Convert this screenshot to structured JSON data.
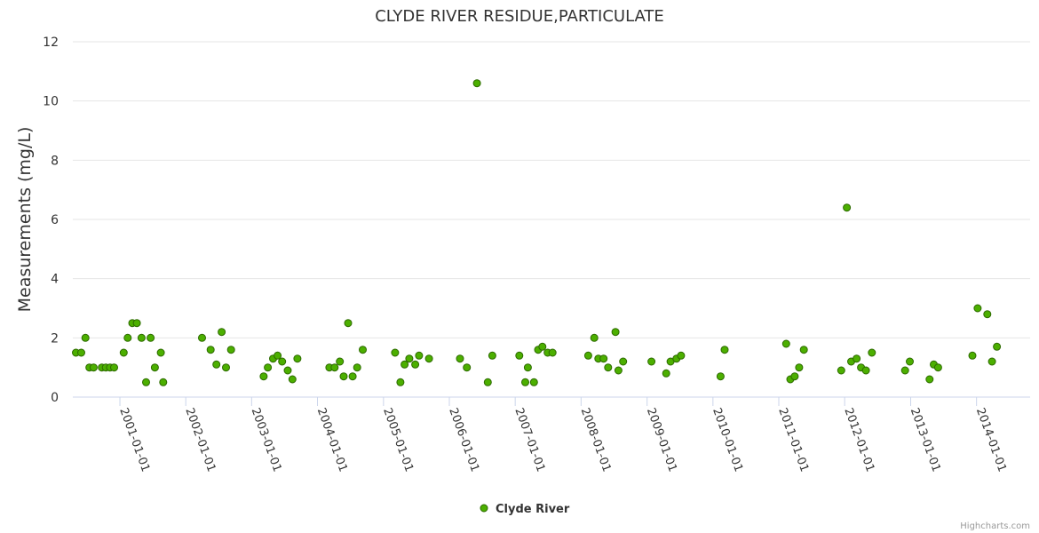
{
  "chart_data": {
    "type": "scatter",
    "title": "CLYDE RIVER RESIDUE,PARTICULATE",
    "ylabel": "Measurements (mg/L)",
    "xlabel": "",
    "ylim": [
      0,
      12
    ],
    "yticks": [
      "0",
      "2",
      "4",
      "6",
      "8",
      "10",
      "12"
    ],
    "xticks": [
      "2001-01-01",
      "2002-01-01",
      "2003-01-01",
      "2004-01-01",
      "2005-01-01",
      "2006-01-01",
      "2007-01-01",
      "2008-01-01",
      "2009-01-01",
      "2010-01-01",
      "2011-01-01",
      "2012-01-01",
      "2013-01-01",
      "2014-01-01"
    ],
    "xlim": [
      "2000-04-15",
      "2014-10-25"
    ],
    "grid": "horizontal",
    "legend_position": "bottom",
    "series": [
      {
        "name": "Clyde River",
        "color": "#4caf00",
        "points": [
          [
            "2000-05-02",
            1.5
          ],
          [
            "2000-06-01",
            1.5
          ],
          [
            "2000-06-24",
            2.0
          ],
          [
            "2000-07-16",
            1.0
          ],
          [
            "2000-08-08",
            1.0
          ],
          [
            "2000-09-23",
            1.0
          ],
          [
            "2000-10-15",
            1.0
          ],
          [
            "2000-11-07",
            1.0
          ],
          [
            "2000-11-30",
            1.0
          ],
          [
            "2001-01-22",
            1.5
          ],
          [
            "2001-02-13",
            2.0
          ],
          [
            "2001-03-11",
            2.5
          ],
          [
            "2001-04-05",
            2.5
          ],
          [
            "2001-05-01",
            2.0
          ],
          [
            "2001-05-26",
            0.5
          ],
          [
            "2001-06-20",
            2.0
          ],
          [
            "2001-07-14",
            1.0
          ],
          [
            "2001-08-16",
            1.5
          ],
          [
            "2001-08-29",
            0.5
          ],
          [
            "2002-04-01",
            2.0
          ],
          [
            "2002-05-19",
            1.6
          ],
          [
            "2002-06-20",
            1.1
          ],
          [
            "2002-07-19",
            2.2
          ],
          [
            "2002-08-12",
            1.0
          ],
          [
            "2002-09-09",
            1.6
          ],
          [
            "2003-03-09",
            0.7
          ],
          [
            "2003-04-01",
            1.0
          ],
          [
            "2003-04-30",
            1.3
          ],
          [
            "2003-05-25",
            1.4
          ],
          [
            "2003-06-19",
            1.2
          ],
          [
            "2003-07-20",
            0.9
          ],
          [
            "2003-08-15",
            0.6
          ],
          [
            "2003-09-12",
            1.3
          ],
          [
            "2004-03-07",
            1.0
          ],
          [
            "2004-04-05",
            1.0
          ],
          [
            "2004-05-04",
            1.2
          ],
          [
            "2004-05-25",
            0.7
          ],
          [
            "2004-06-19",
            2.5
          ],
          [
            "2004-07-14",
            0.7
          ],
          [
            "2004-08-08",
            1.0
          ],
          [
            "2004-09-08",
            1.6
          ],
          [
            "2005-03-06",
            1.5
          ],
          [
            "2005-04-05",
            0.5
          ],
          [
            "2005-04-28",
            1.1
          ],
          [
            "2005-05-24",
            1.3
          ],
          [
            "2005-06-26",
            1.1
          ],
          [
            "2005-07-17",
            1.4
          ],
          [
            "2005-09-10",
            1.3
          ],
          [
            "2006-03-01",
            1.3
          ],
          [
            "2006-04-08",
            1.0
          ],
          [
            "2006-06-03",
            10.6
          ],
          [
            "2006-08-02",
            0.5
          ],
          [
            "2006-08-27",
            1.4
          ],
          [
            "2007-01-24",
            1.4
          ],
          [
            "2007-02-26",
            0.5
          ],
          [
            "2007-03-12",
            1.0
          ],
          [
            "2007-04-15",
            0.5
          ],
          [
            "2007-05-08",
            1.6
          ],
          [
            "2007-06-01",
            1.7
          ],
          [
            "2007-06-30",
            1.5
          ],
          [
            "2007-07-27",
            1.5
          ],
          [
            "2008-02-10",
            1.4
          ],
          [
            "2008-03-14",
            2.0
          ],
          [
            "2008-04-06",
            1.3
          ],
          [
            "2008-05-05",
            1.3
          ],
          [
            "2008-05-30",
            1.0
          ],
          [
            "2008-07-10",
            2.2
          ],
          [
            "2008-07-26",
            0.9
          ],
          [
            "2008-08-21",
            1.2
          ],
          [
            "2009-01-25",
            1.2
          ],
          [
            "2009-04-17",
            0.8
          ],
          [
            "2009-05-11",
            1.2
          ],
          [
            "2009-06-13",
            1.3
          ],
          [
            "2009-07-08",
            1.4
          ],
          [
            "2010-02-12",
            0.7
          ],
          [
            "2010-03-07",
            1.6
          ],
          [
            "2011-02-11",
            1.8
          ],
          [
            "2011-03-06",
            0.6
          ],
          [
            "2011-03-30",
            0.7
          ],
          [
            "2011-04-24",
            1.0
          ],
          [
            "2011-05-20",
            1.6
          ],
          [
            "2011-12-13",
            0.9
          ],
          [
            "2012-01-13",
            6.4
          ],
          [
            "2012-02-06",
            1.2
          ],
          [
            "2012-03-07",
            1.3
          ],
          [
            "2012-04-01",
            1.0
          ],
          [
            "2012-04-28",
            0.9
          ],
          [
            "2012-05-31",
            1.5
          ],
          [
            "2012-12-01",
            0.9
          ],
          [
            "2012-12-27",
            1.2
          ],
          [
            "2013-04-16",
            0.6
          ],
          [
            "2013-05-09",
            1.1
          ],
          [
            "2013-06-02",
            1.0
          ],
          [
            "2013-12-09",
            1.4
          ],
          [
            "2014-01-07",
            3.0
          ],
          [
            "2014-03-02",
            2.8
          ],
          [
            "2014-03-28",
            1.2
          ],
          [
            "2014-04-24",
            1.7
          ]
        ]
      }
    ]
  },
  "legend": {
    "label": "Clyde River"
  },
  "credits": "Highcharts.com"
}
